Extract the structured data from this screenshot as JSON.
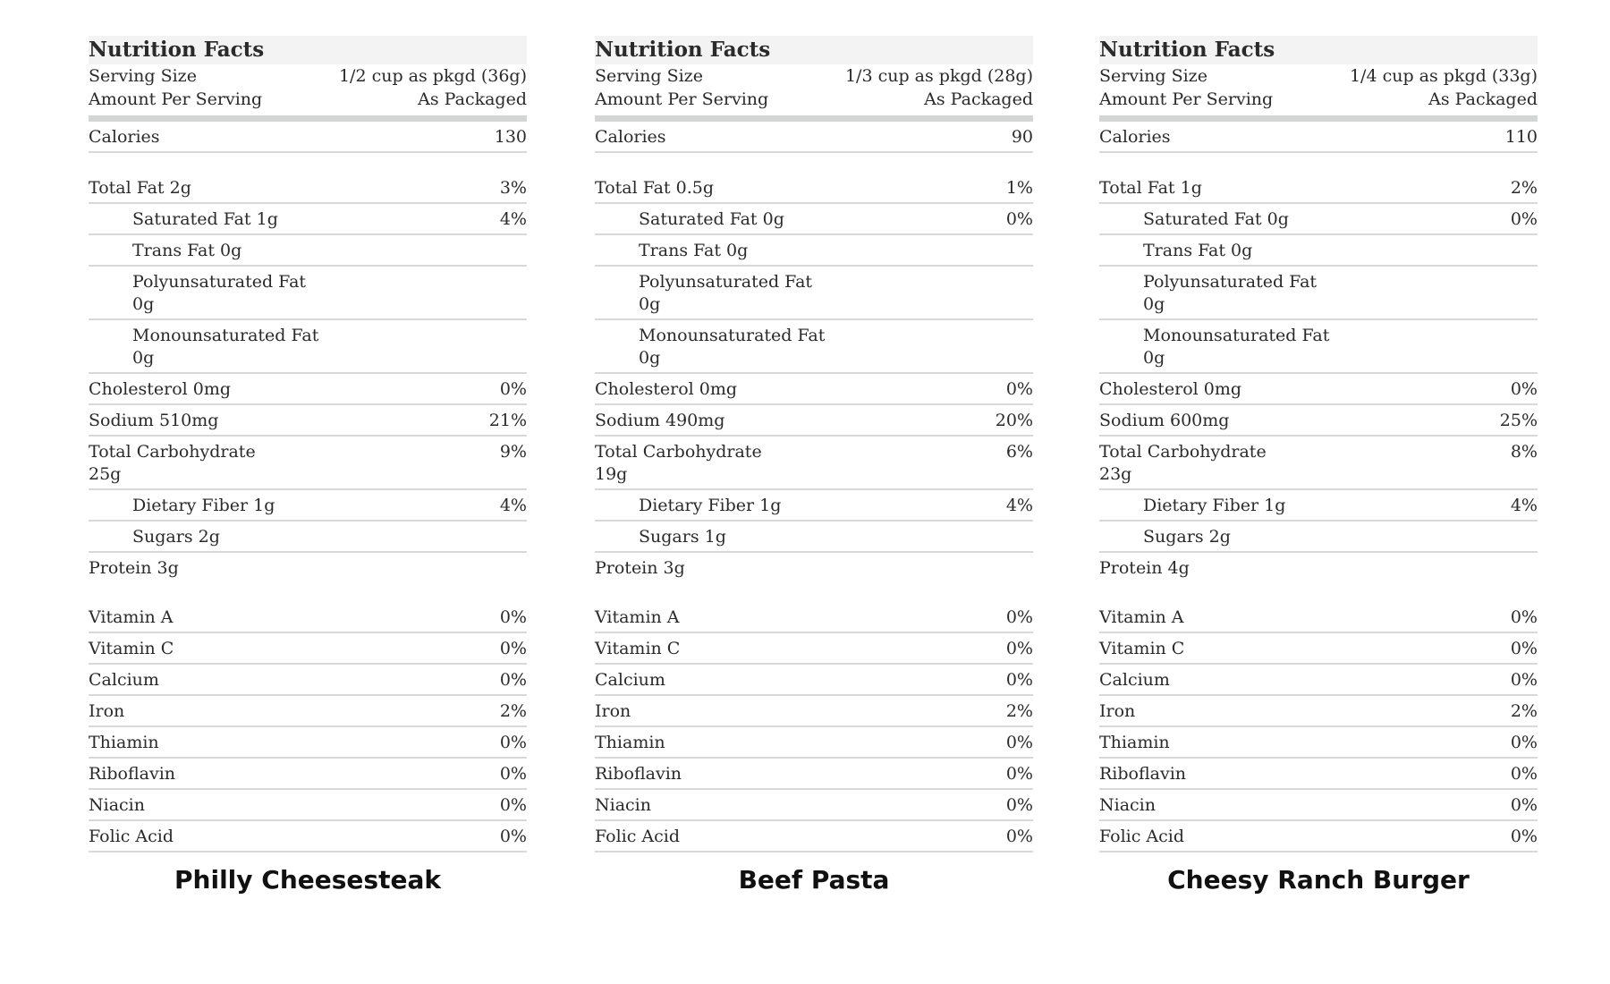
{
  "panels": [
    {
      "title": "Nutrition Facts",
      "serving_label": "Serving Size",
      "serving_value": "1/2 cup as pkgd (36g)",
      "amount_label": "Amount Per Serving",
      "amount_value": "As Packaged",
      "calories": {
        "label": "Calories",
        "value": "130"
      },
      "nutrients": [
        {
          "label": "Total Fat 2g",
          "dv": "3%"
        },
        {
          "label": "Saturated Fat 1g",
          "dv": "4%",
          "indent": true
        },
        {
          "label": "Trans Fat 0g",
          "indent": true
        },
        {
          "label": "Polyunsaturated Fat 0g",
          "indent": true
        },
        {
          "label": "Monounsaturated Fat 0g",
          "indent": true
        },
        {
          "label": "Cholesterol 0mg",
          "dv": "0%"
        },
        {
          "label": "Sodium 510mg",
          "dv": "21%"
        },
        {
          "label": "Total Carbohydrate 25g",
          "dv": "9%"
        },
        {
          "label": "Dietary Fiber 1g",
          "dv": "4%",
          "indent": true
        },
        {
          "label": "Sugars 2g",
          "indent": true
        },
        {
          "label": "Protein 3g"
        }
      ],
      "vitamins": [
        {
          "label": "Vitamin A",
          "dv": "0%"
        },
        {
          "label": "Vitamin C",
          "dv": "0%"
        },
        {
          "label": "Calcium",
          "dv": "0%"
        },
        {
          "label": "Iron",
          "dv": "2%"
        },
        {
          "label": "Thiamin",
          "dv": "0%"
        },
        {
          "label": "Riboflavin",
          "dv": "0%"
        },
        {
          "label": "Niacin",
          "dv": "0%"
        },
        {
          "label": "Folic Acid",
          "dv": "0%"
        }
      ],
      "product": "Philly Cheesesteak"
    },
    {
      "title": "Nutrition Facts",
      "serving_label": "Serving Size",
      "serving_value": "1/3 cup as pkgd (28g)",
      "amount_label": "Amount Per Serving",
      "amount_value": "As Packaged",
      "calories": {
        "label": "Calories",
        "value": "90"
      },
      "nutrients": [
        {
          "label": "Total Fat 0.5g",
          "dv": "1%"
        },
        {
          "label": "Saturated Fat 0g",
          "dv": "0%",
          "indent": true
        },
        {
          "label": "Trans Fat 0g",
          "indent": true
        },
        {
          "label": "Polyunsaturated Fat 0g",
          "indent": true
        },
        {
          "label": "Monounsaturated Fat 0g",
          "indent": true
        },
        {
          "label": "Cholesterol 0mg",
          "dv": "0%"
        },
        {
          "label": "Sodium 490mg",
          "dv": "20%"
        },
        {
          "label": "Total Carbohydrate 19g",
          "dv": "6%"
        },
        {
          "label": "Dietary Fiber 1g",
          "dv": "4%",
          "indent": true
        },
        {
          "label": "Sugars 1g",
          "indent": true
        },
        {
          "label": "Protein 3g"
        }
      ],
      "vitamins": [
        {
          "label": "Vitamin A",
          "dv": "0%"
        },
        {
          "label": "Vitamin C",
          "dv": "0%"
        },
        {
          "label": "Calcium",
          "dv": "0%"
        },
        {
          "label": "Iron",
          "dv": "2%"
        },
        {
          "label": "Thiamin",
          "dv": "0%"
        },
        {
          "label": "Riboflavin",
          "dv": "0%"
        },
        {
          "label": "Niacin",
          "dv": "0%"
        },
        {
          "label": "Folic Acid",
          "dv": "0%"
        }
      ],
      "product": "Beef Pasta"
    },
    {
      "title": "Nutrition Facts",
      "serving_label": "Serving Size",
      "serving_value": "1/4 cup as pkgd (33g)",
      "amount_label": "Amount Per Serving",
      "amount_value": "As Packaged",
      "calories": {
        "label": "Calories",
        "value": "110"
      },
      "nutrients": [
        {
          "label": "Total Fat 1g",
          "dv": "2%"
        },
        {
          "label": "Saturated Fat 0g",
          "dv": "0%",
          "indent": true
        },
        {
          "label": "Trans Fat 0g",
          "indent": true
        },
        {
          "label": "Polyunsaturated Fat 0g",
          "indent": true
        },
        {
          "label": "Monounsaturated Fat 0g",
          "indent": true
        },
        {
          "label": "Cholesterol 0mg",
          "dv": "0%"
        },
        {
          "label": "Sodium 600mg",
          "dv": "25%"
        },
        {
          "label": "Total Carbohydrate 23g",
          "dv": "8%"
        },
        {
          "label": "Dietary Fiber 1g",
          "dv": "4%",
          "indent": true
        },
        {
          "label": "Sugars 2g",
          "indent": true
        },
        {
          "label": "Protein 4g"
        }
      ],
      "vitamins": [
        {
          "label": "Vitamin A",
          "dv": "0%"
        },
        {
          "label": "Vitamin C",
          "dv": "0%"
        },
        {
          "label": "Calcium",
          "dv": "0%"
        },
        {
          "label": "Iron",
          "dv": "2%"
        },
        {
          "label": "Thiamin",
          "dv": "0%"
        },
        {
          "label": "Riboflavin",
          "dv": "0%"
        },
        {
          "label": "Niacin",
          "dv": "0%"
        },
        {
          "label": "Folic Acid",
          "dv": "0%"
        }
      ],
      "product": "Cheesy Ranch Burger"
    }
  ]
}
